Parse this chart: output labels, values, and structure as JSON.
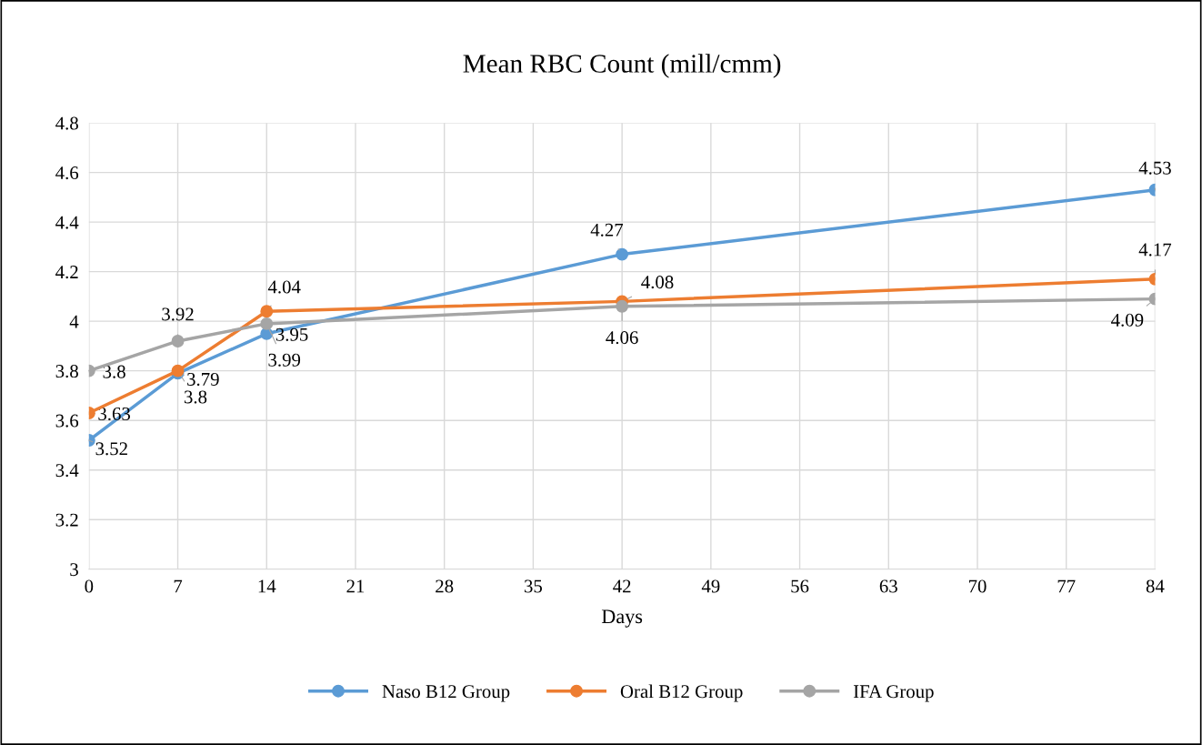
{
  "chart_data": {
    "type": "line",
    "title": "Mean RBC Count (mill/cmm)",
    "xlabel": "Days",
    "x": [
      0,
      7,
      14,
      42,
      84
    ],
    "series": [
      {
        "name": "Naso B12 Group",
        "color": "#5b9bd5",
        "values": [
          3.52,
          3.79,
          3.95,
          4.27,
          4.53
        ]
      },
      {
        "name": "Oral B12 Group",
        "color": "#ed7d31",
        "values": [
          3.63,
          3.8,
          4.04,
          4.08,
          4.17
        ]
      },
      {
        "name": "IFA Group",
        "color": "#a5a5a5",
        "values": [
          3.8,
          3.92,
          3.99,
          4.06,
          4.09
        ]
      }
    ],
    "xlim": [
      0,
      84
    ],
    "xticks": [
      0,
      7,
      14,
      21,
      28,
      35,
      42,
      49,
      56,
      63,
      70,
      77,
      84
    ],
    "ylim": [
      3,
      4.8
    ],
    "yticks": [
      3,
      3.2,
      3.4,
      3.6,
      3.8,
      4,
      4.2,
      4.4,
      4.6,
      4.8
    ],
    "grid": true,
    "legend": "bottom",
    "marker": "circle",
    "line_style": "solid",
    "data_labels": true
  }
}
